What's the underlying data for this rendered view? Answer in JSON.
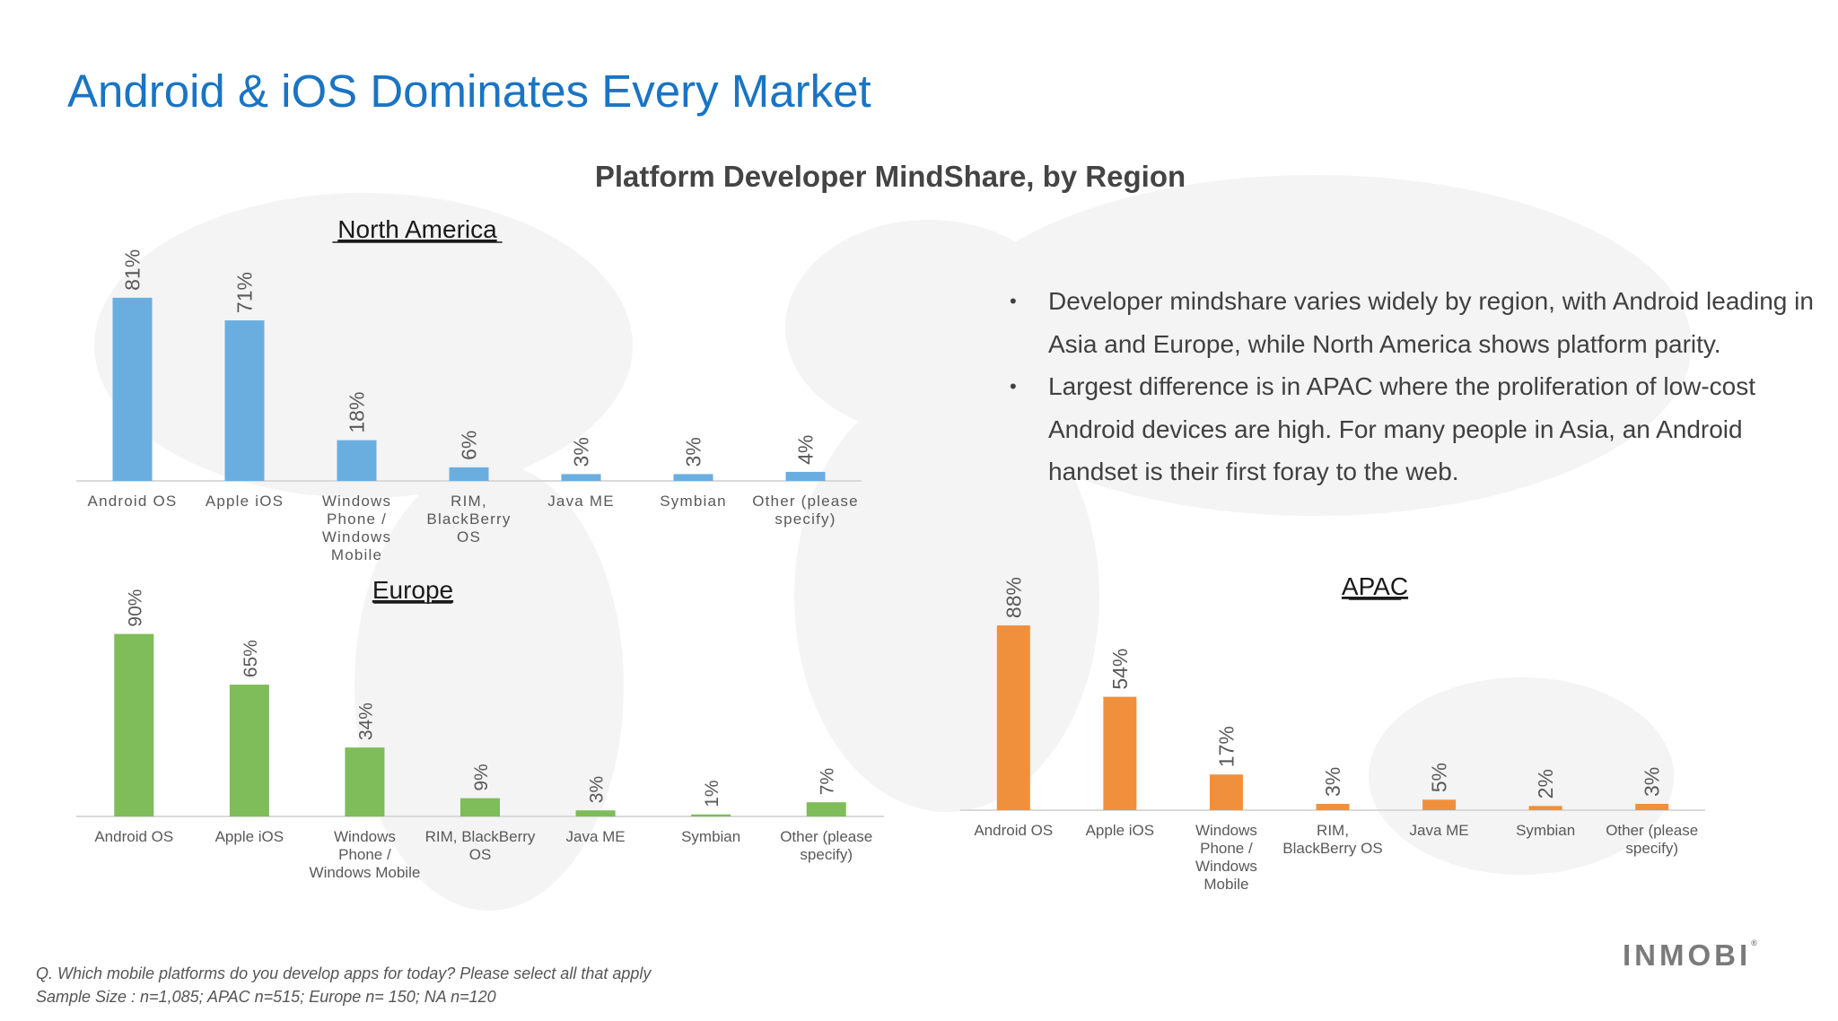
{
  "slide": {
    "title": "Android & iOS Dominates Every Market",
    "chart_heading": "Platform Developer MindShare, by Region",
    "bullets": [
      "Developer mindshare varies widely by region, with Android leading in Asia and Europe, while North America shows platform parity.",
      "Largest difference is in APAC where the proliferation of low-cost Android devices are high. For many people in Asia, an Android handset is their first foray to the web."
    ],
    "footnote_question": "Q. Which mobile platforms do you develop apps for today? Please select all that apply",
    "footnote_sample": "Sample Size : n=1,085; APAC n=515; Europe n= 150; NA n=120",
    "logo_text": "INMOBI"
  },
  "colors": {
    "title": "#1a74c4",
    "north_america": "#6aaee0",
    "europe": "#7fbc5a",
    "apac": "#f0903c",
    "axis": "#d9d9d9",
    "label": "#595959"
  },
  "chart_data": [
    {
      "type": "bar",
      "title": "North America",
      "categories": [
        "Android OS",
        "Apple iOS",
        "Windows Phone / Windows Mobile",
        "RIM, BlackBerry OS",
        "Java ME",
        "Symbian",
        "Other (please specify)"
      ],
      "category_lines": [
        [
          "Android OS"
        ],
        [
          "Apple iOS"
        ],
        [
          "Windows",
          "Phone /",
          "Windows",
          "Mobile"
        ],
        [
          "RIM,",
          "BlackBerry",
          "OS"
        ],
        [
          "Java ME"
        ],
        [
          "Symbian"
        ],
        [
          "Other (please",
          "specify)"
        ]
      ],
      "values": [
        81,
        71,
        18,
        6,
        3,
        3,
        4
      ],
      "value_labels": [
        "81%",
        "71%",
        "18%",
        "6%",
        "3%",
        "3%",
        "4%"
      ],
      "color": "#6aaee0"
    },
    {
      "type": "bar",
      "title": "Europe",
      "categories": [
        "Android OS",
        "Apple iOS",
        "Windows Phone / Windows Mobile",
        "RIM, BlackBerry OS",
        "Java ME",
        "Symbian",
        "Other (please specify)"
      ],
      "category_lines": [
        [
          "Android OS"
        ],
        [
          "Apple iOS"
        ],
        [
          "Windows",
          "Phone /",
          "Windows Mobile"
        ],
        [
          "RIM, BlackBerry",
          "OS"
        ],
        [
          "Java ME"
        ],
        [
          "Symbian"
        ],
        [
          "Other (please",
          "specify)"
        ]
      ],
      "values": [
        90,
        65,
        34,
        9,
        3,
        1,
        7
      ],
      "value_labels": [
        "90%",
        "65%",
        "34%",
        "9%",
        "3%",
        "1%",
        "7%"
      ],
      "color": "#7fbc5a"
    },
    {
      "type": "bar",
      "title": "APAC",
      "categories": [
        "Android OS",
        "Apple iOS",
        "Windows Phone / Windows Mobile",
        "RIM, BlackBerry OS",
        "Java ME",
        "Symbian",
        "Other (please specify)"
      ],
      "category_lines": [
        [
          "Android OS"
        ],
        [
          "Apple iOS"
        ],
        [
          "Windows",
          "Phone /",
          "Windows",
          "Mobile"
        ],
        [
          "RIM,",
          "BlackBerry OS"
        ],
        [
          "Java ME"
        ],
        [
          "Symbian"
        ],
        [
          "Other (please",
          "specify)"
        ]
      ],
      "values": [
        88,
        54,
        17,
        3,
        5,
        2,
        3
      ],
      "value_labels": [
        "88%",
        "54%",
        "17%",
        "3%",
        "5%",
        "2%",
        "3%"
      ],
      "color": "#f0903c"
    }
  ]
}
